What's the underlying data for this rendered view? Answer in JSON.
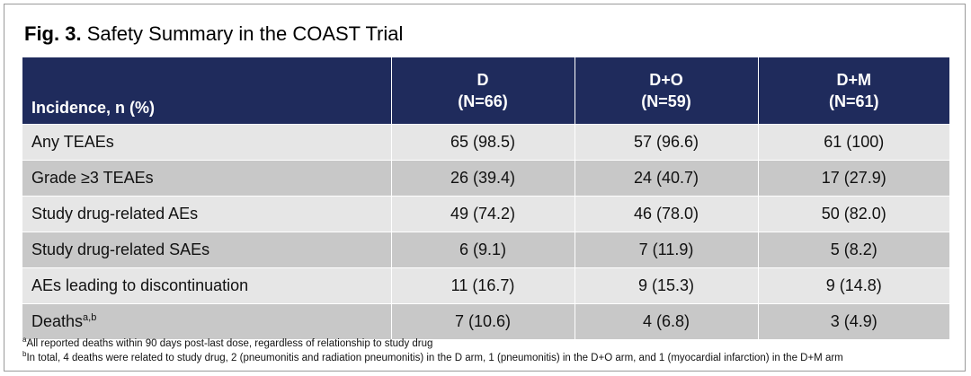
{
  "title": {
    "bold": "Fig. 3.",
    "text": "Safety Summary in the COAST Trial"
  },
  "table": {
    "header": {
      "first": "Incidence, n (%)",
      "arms": [
        {
          "name": "D",
          "n": "(N=66)"
        },
        {
          "name": "D+O",
          "n": "(N=59)"
        },
        {
          "name": "D+M",
          "n": "(N=61)"
        }
      ]
    },
    "rows": [
      {
        "label": "Any TEAEs",
        "sup": "",
        "values": [
          "65 (98.5)",
          "57 (96.6)",
          "61 (100)"
        ]
      },
      {
        "label": "Grade ≥3 TEAEs",
        "sup": "",
        "values": [
          "26 (39.4)",
          "24 (40.7)",
          "17 (27.9)"
        ]
      },
      {
        "label": "Study drug-related AEs",
        "sup": "",
        "values": [
          "49 (74.2)",
          "46 (78.0)",
          "50 (82.0)"
        ]
      },
      {
        "label": "Study drug-related SAEs",
        "sup": "",
        "values": [
          "6 (9.1)",
          "7 (11.9)",
          "5 (8.2)"
        ]
      },
      {
        "label": "AEs leading to discontinuation",
        "sup": "",
        "values": [
          "11 (16.7)",
          "9 (15.3)",
          "9 (14.8)"
        ]
      },
      {
        "label": "Deaths",
        "sup": "a,b",
        "values": [
          "7 (10.6)",
          "4 (6.8)",
          "3 (4.9)"
        ]
      }
    ]
  },
  "footnotes": [
    {
      "mark": "a",
      "text": "All reported deaths within 90 days post-last dose, regardless of relationship to study drug"
    },
    {
      "mark": "b",
      "text": "In total, 4 deaths were related to study drug, 2 (pneumonitis and radiation pneumonitis) in the D arm, 1 (pneumonitis) in the D+O arm, and 1 (myocardial infarction) in the D+M arm"
    }
  ],
  "colors": {
    "header_bg": "#1f2b5c",
    "row_light": "#e6e6e6",
    "row_dark": "#c8c8c8"
  }
}
